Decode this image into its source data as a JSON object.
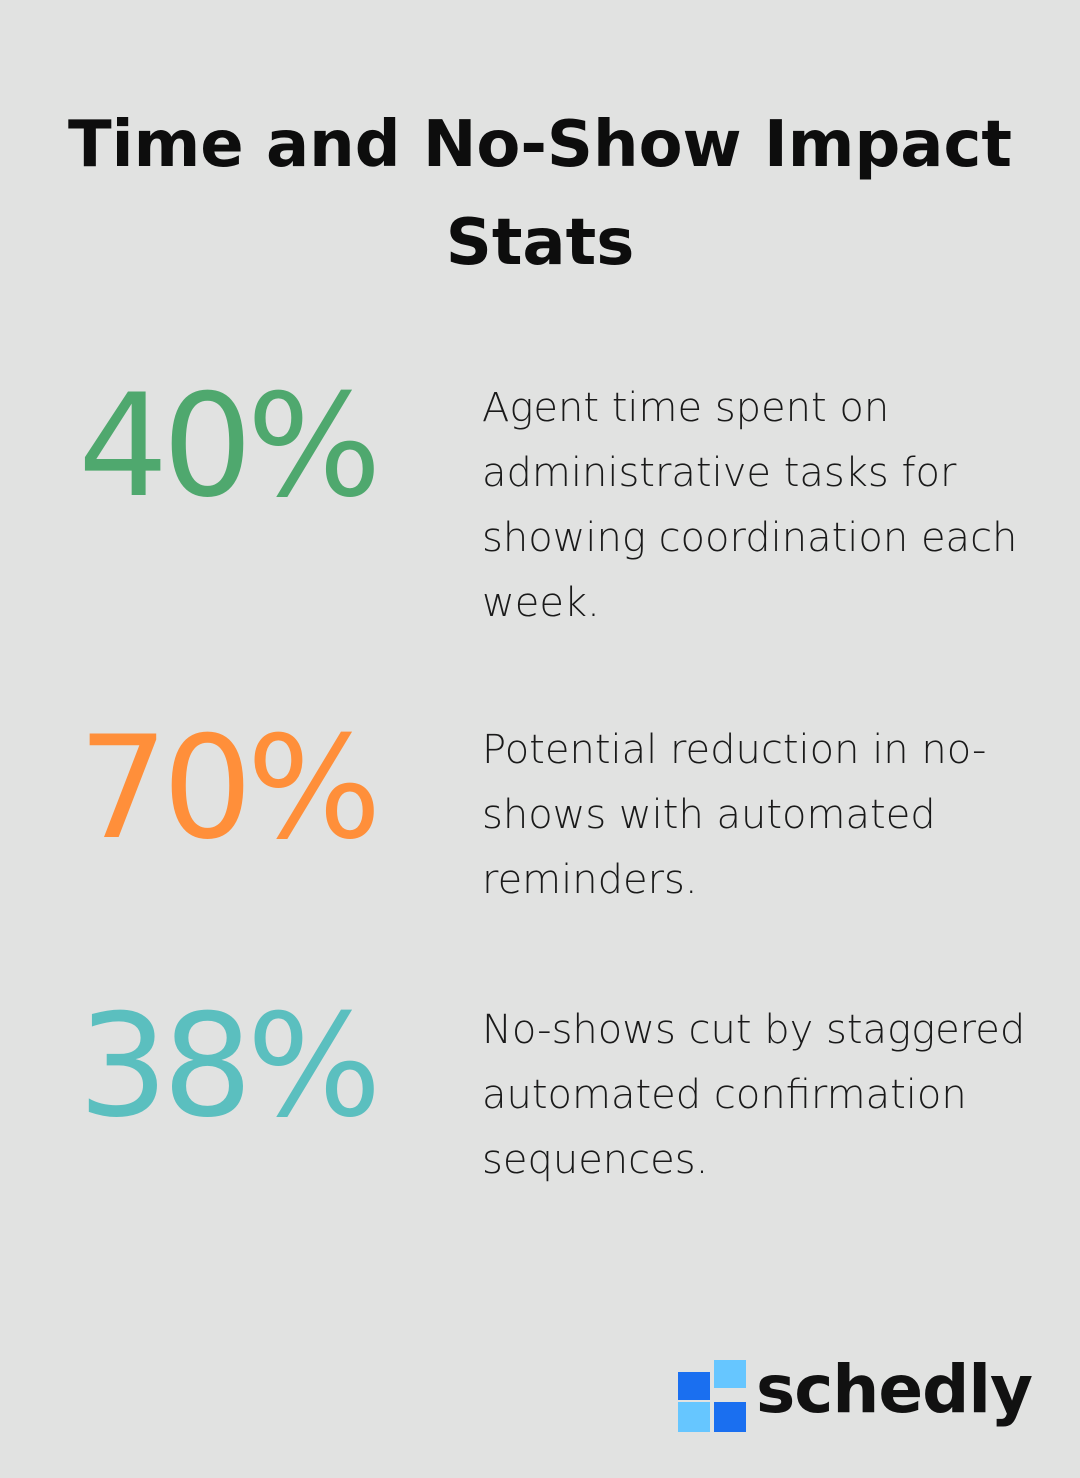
{
  "title": "Time and No-Show Impact Stats",
  "stats": [
    {
      "value": "40%",
      "description": "Agent time spent on administrative tasks for showing coordination each week.",
      "color": "#4fa86e"
    },
    {
      "value": "70%",
      "description": "Potential reduction in no-shows with automated reminders.",
      "color": "#ff8f3a"
    },
    {
      "value": "38%",
      "description": "No-shows cut by staggered automated confirmation sequences.",
      "color": "#5bbfbf"
    }
  ],
  "brand": {
    "name": "schedly",
    "icon": "schedly-logo-icon",
    "colors": [
      "#1a6ff0",
      "#66c6ff"
    ]
  }
}
